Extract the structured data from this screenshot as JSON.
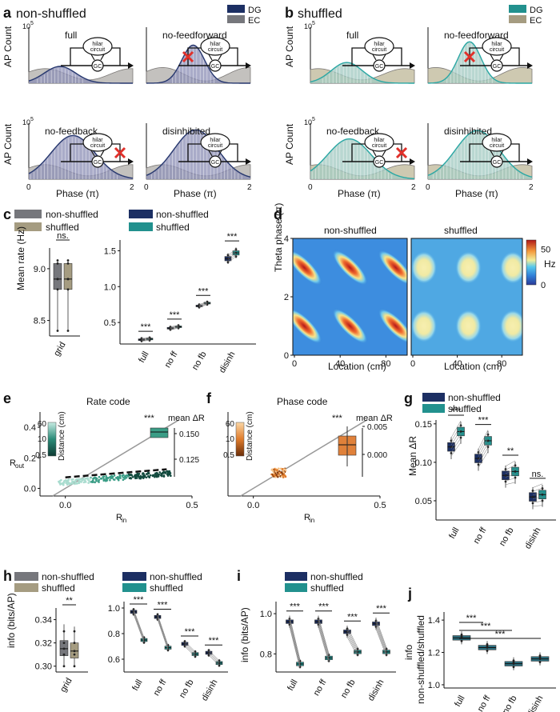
{
  "colors": {
    "ns": "#1c2f63",
    "sh": "#22918e",
    "gridNs": "#76777c",
    "gridSh": "#a59c81",
    "ec": "#8f8a87",
    "dg_ns": "#26376e",
    "dg_sh": "#2aa7a4",
    "fill_ns": "#8c8fb6",
    "fill_sh": "#a2c9c2",
    "orange": "#e0813a",
    "red": "#e0302a"
  },
  "labels": {
    "a": "a",
    "b": "b",
    "c": "c",
    "d": "d",
    "e": "e",
    "f": "f",
    "g": "g",
    "h": "h",
    "i": "i",
    "j": "j",
    "a_title": "non-shuffled",
    "b_title": "shuffled",
    "DG": "DG",
    "EC": "EC",
    "full": "full",
    "noff": "no-feedforward",
    "nofb": "no-feedback",
    "disinh": "disinhibited",
    "apcount": "AP Count",
    "exp5": "10",
    "exp5sup": "5",
    "phase": "Phase (π)",
    "hilar1": "hilar",
    "hilar2": "circuit",
    "gc": "GC",
    "ns": "non-shuffled",
    "sh": "shuffled",
    "ns_cap": "non-shuffled",
    "sh_cap": "shuffled",
    "meanrate": "Mean rate (Hz)",
    "grid": "grid",
    "ns_sig": "ns.",
    "cat_full": "full",
    "cat_noff": "no ff",
    "cat_nofb": "no fb",
    "cat_disinh": "disinh",
    "stars3": "***",
    "stars2": "**",
    "theta": "Theta phase (π)",
    "location": "Location (cm)",
    "hz": "Hz",
    "rate_code": "Rate code",
    "phase_code": "Phase code",
    "rout": "R",
    "rout_sub": "out",
    "rin": "R",
    "rin_sub": "in",
    "distance": "Distance (cm)",
    "meandr": "mean ΔR",
    "meandr_axis": "Mean ΔR",
    "info": "info (bits/AP)",
    "info_ratio1": "info",
    "info_ratio2": "non-shuffled/shuffled"
  },
  "chart_data": [
    {
      "panel": "a",
      "type": "area",
      "title": "non-shuffled",
      "ylabel": "AP Count",
      "xlabel": "Phase (π)",
      "xlim": [
        0,
        2
      ],
      "subpanels": [
        {
          "name": "full",
          "dg_peak": 0.3,
          "dg_center": 0.6
        },
        {
          "name": "no-feedforward",
          "dg_peak": 0.68,
          "dg_center": 0.9
        },
        {
          "name": "no-feedback",
          "dg_peak": 0.78,
          "dg_center": 0.85
        },
        {
          "name": "disinhibited",
          "dg_peak": 0.88,
          "dg_center": 0.95
        }
      ]
    },
    {
      "panel": "b",
      "type": "area",
      "title": "shuffled",
      "ylabel": "AP Count",
      "xlabel": "Phase (π)",
      "xlim": [
        0,
        2
      ],
      "subpanels": [
        {
          "name": "full",
          "dg_peak": 0.37,
          "dg_center": 0.7
        },
        {
          "name": "no-feedforward",
          "dg_peak": 0.74,
          "dg_center": 0.8
        },
        {
          "name": "no-feedback",
          "dg_peak": 0.72,
          "dg_center": 0.75
        },
        {
          "name": "disinhibited",
          "dg_peak": 0.87,
          "dg_center": 0.95
        }
      ]
    },
    {
      "panel": "c-left",
      "type": "box",
      "ylabel": "Mean rate (Hz)",
      "categories": [
        "grid"
      ],
      "ylim": [
        8.35,
        9.2
      ],
      "yticks": [
        8.5,
        9.0
      ],
      "series": [
        {
          "name": "non-shuffled",
          "box": [
            8.4,
            8.8,
            8.9,
            9.05,
            9.08
          ]
        },
        {
          "name": "shuffled",
          "box": [
            8.4,
            8.8,
            8.9,
            9.05,
            9.08
          ]
        }
      ],
      "significance": [
        "ns."
      ]
    },
    {
      "panel": "c-right",
      "type": "box",
      "categories": [
        "full",
        "no ff",
        "no fb",
        "disinh"
      ],
      "ylim": [
        0.2,
        1.65
      ],
      "yticks": [
        0.5,
        1.0,
        1.5
      ],
      "series": [
        {
          "name": "non-shuffled",
          "medians": [
            0.26,
            0.42,
            0.73,
            1.39
          ]
        },
        {
          "name": "shuffled",
          "medians": [
            0.27,
            0.44,
            0.77,
            1.47
          ]
        }
      ],
      "significance": [
        "***",
        "***",
        "***",
        "***"
      ]
    },
    {
      "panel": "d",
      "type": "heatmap",
      "xlabel": "Location (cm)",
      "ylabel": "Theta phase (π)",
      "xticks": [
        0,
        40,
        80
      ],
      "yticks": [
        0,
        2,
        4
      ],
      "colorbar": {
        "label": "Hz",
        "ticks": [
          0,
          50
        ]
      },
      "subpanels": [
        "non-shuffled",
        "shuffled"
      ]
    },
    {
      "panel": "e",
      "type": "scatter",
      "title": "Rate code",
      "xlabel": "R in",
      "ylabel": "R out",
      "xlim": [
        -0.1,
        0.5
      ],
      "ylim": [
        -0.05,
        0.5
      ],
      "xticks": [
        0.0,
        0.5
      ],
      "yticks": [
        0.0,
        0.2,
        0.4
      ],
      "colorbar": {
        "label": "Distance (cm)",
        "ticks": [
          0.5,
          10,
          60
        ]
      },
      "inset": {
        "label": "mean ΔR",
        "ticks": [
          0.125,
          0.15
        ],
        "significance": "***"
      }
    },
    {
      "panel": "f",
      "type": "scatter",
      "title": "Phase code",
      "xlabel": "R in",
      "xlim": [
        -0.1,
        0.5
      ],
      "xticks": [
        0.0,
        0.5
      ],
      "colorbar": {
        "label": "Distance (cm)",
        "ticks": [
          0.5,
          10,
          60
        ]
      },
      "inset": {
        "label": "mean ΔR",
        "ticks": [
          0.0,
          0.005
        ],
        "significance": "***"
      }
    },
    {
      "panel": "g",
      "type": "box",
      "ylabel": "Mean ΔR",
      "categories": [
        "full",
        "no ff",
        "no fb",
        "disinh"
      ],
      "ylim": [
        0.025,
        0.155
      ],
      "yticks": [
        0.05,
        0.1,
        0.15
      ],
      "series": [
        {
          "name": "non-shuffled",
          "medians": [
            0.12,
            0.105,
            0.083,
            0.055
          ]
        },
        {
          "name": "shuffled",
          "medians": [
            0.14,
            0.128,
            0.088,
            0.058
          ]
        }
      ],
      "significance": [
        "***",
        "***",
        "**",
        "ns."
      ]
    },
    {
      "panel": "h-left",
      "type": "box",
      "ylabel": "info (bits/AP)",
      "categories": [
        "grid"
      ],
      "ylim": [
        0.295,
        0.35
      ],
      "yticks": [
        0.3,
        0.32,
        0.34
      ],
      "series": [
        {
          "name": "non-shuffled",
          "box": [
            0.3,
            0.309,
            0.315,
            0.322,
            0.336
          ]
        },
        {
          "name": "shuffled",
          "box": [
            0.299,
            0.307,
            0.313,
            0.32,
            0.334
          ]
        }
      ],
      "significance": [
        "**"
      ]
    },
    {
      "panel": "h-right",
      "type": "box",
      "categories": [
        "full",
        "no ff",
        "no fb",
        "disinh"
      ],
      "ylim": [
        0.5,
        1.05
      ],
      "yticks": [
        0.6,
        0.8,
        1.0
      ],
      "series": [
        {
          "name": "non-shuffled",
          "medians": [
            0.97,
            0.93,
            0.72,
            0.65
          ]
        },
        {
          "name": "shuffled",
          "medians": [
            0.75,
            0.69,
            0.64,
            0.57
          ]
        }
      ],
      "significance": [
        "***",
        "***",
        "***",
        "***"
      ]
    },
    {
      "panel": "i",
      "type": "box",
      "ylabel": "info (bits/AP)",
      "categories": [
        "full",
        "no ff",
        "no fb",
        "disinh"
      ],
      "ylim": [
        0.71,
        1.06
      ],
      "yticks": [
        0.8,
        1.0
      ],
      "series": [
        {
          "name": "non-shuffled",
          "medians": [
            0.96,
            0.96,
            0.91,
            0.95
          ]
        },
        {
          "name": "shuffled",
          "medians": [
            0.75,
            0.78,
            0.81,
            0.81
          ]
        }
      ],
      "significance": [
        "***",
        "***",
        "***",
        "***"
      ]
    },
    {
      "panel": "j",
      "type": "box",
      "ylabel": "info non-shuffled/shuffled",
      "categories": [
        "full",
        "no ff",
        "no fb",
        "disinh"
      ],
      "ylim": [
        0.98,
        1.45
      ],
      "yticks": [
        1.0,
        1.2,
        1.4
      ],
      "series": [
        {
          "name": "ratio",
          "medians": [
            1.29,
            1.23,
            1.13,
            1.16
          ]
        }
      ],
      "significance": [
        "***",
        "***",
        "***"
      ]
    }
  ]
}
